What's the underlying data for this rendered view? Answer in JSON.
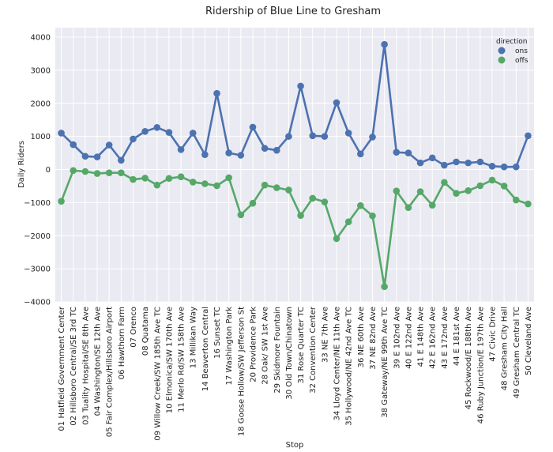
{
  "chart_data": {
    "type": "line",
    "title": "Ridership of Blue Line to Gresham",
    "xlabel": "Stop",
    "ylabel": "Daily Riders",
    "ylim": [
      -4000,
      4200
    ],
    "yticks": [
      -4000,
      -3000,
      -2000,
      -1000,
      0,
      1000,
      2000,
      3000,
      4000
    ],
    "ytick_labels": [
      "−4000",
      "−3000",
      "−2000",
      "−1000",
      "0",
      "1000",
      "2000",
      "3000",
      "4000"
    ],
    "grid": true,
    "legend_title": "direction",
    "legend_position": "top-right",
    "categories": [
      "01 Hatfield Government Center",
      "02 Hillsboro Central/SE 3rd TC",
      "03 Tuality Hospital/SE 8th Ave",
      "04 Washington/SE 12th Ave",
      "05 Fair Complex/Hillsboro Airport",
      "06 Hawthorn Farm",
      "07 Orenco",
      "08 Quatama",
      "09 Willow Creek/SW 185th Ave TC",
      "10 Elmonica/SW 170th Ave",
      "11 Merlo Rd/SW 158th Ave",
      "13 Millikan Way",
      "14 Beaverton Central",
      "16 Sunset TC",
      "17 Washington Park",
      "18 Goose Hollow/SW Jefferson St",
      "20 Providence Park",
      "28 Oak/ SW 1st Ave",
      "29 Skidmore Fountain",
      "30 Old Town/Chinatown",
      "31 Rose Quarter TC",
      "32 Convention Center",
      "33 NE 7th Ave",
      "34 Lloyd Center/NE 11th Ave",
      "35 Hollywood/NE 42nd Ave TC",
      "36 NE 60th Ave",
      "37 NE 82nd Ave",
      "38 Gateway/NE 99th Ave TC",
      "39 E 102nd Ave",
      "40 E 122nd Ave",
      "41 E 148th Ave",
      "42 E 162nd Ave",
      "43 E 172nd Ave",
      "44 E 181st Ave",
      "45 Rockwood/E 188th Ave",
      "46 Ruby Junction/E 197th Ave",
      "47 Civic Drive",
      "48 Gresham City Hall",
      "49 Gresham Central TC",
      "50 Cleveland Ave"
    ],
    "series": [
      {
        "name": "ons",
        "color": "#4c72b0",
        "values": [
          1100,
          750,
          400,
          380,
          740,
          280,
          920,
          1150,
          1270,
          1120,
          600,
          1100,
          450,
          2300,
          500,
          430,
          1280,
          640,
          580,
          1000,
          2520,
          1020,
          1000,
          2020,
          1100,
          470,
          980,
          3780,
          520,
          500,
          200,
          350,
          130,
          230,
          200,
          230,
          100,
          80,
          80,
          1020
        ]
      },
      {
        "name": "offs",
        "color": "#55a868",
        "values": [
          -960,
          -30,
          -60,
          -120,
          -100,
          -100,
          -300,
          -260,
          -470,
          -270,
          -220,
          -380,
          -430,
          -490,
          -250,
          -1370,
          -1020,
          -470,
          -550,
          -620,
          -1390,
          -870,
          -980,
          -2090,
          -1580,
          -1090,
          -1400,
          -3540,
          -650,
          -1150,
          -670,
          -1080,
          -390,
          -720,
          -640,
          -490,
          -320,
          -500,
          -920,
          -1040
        ]
      }
    ]
  }
}
